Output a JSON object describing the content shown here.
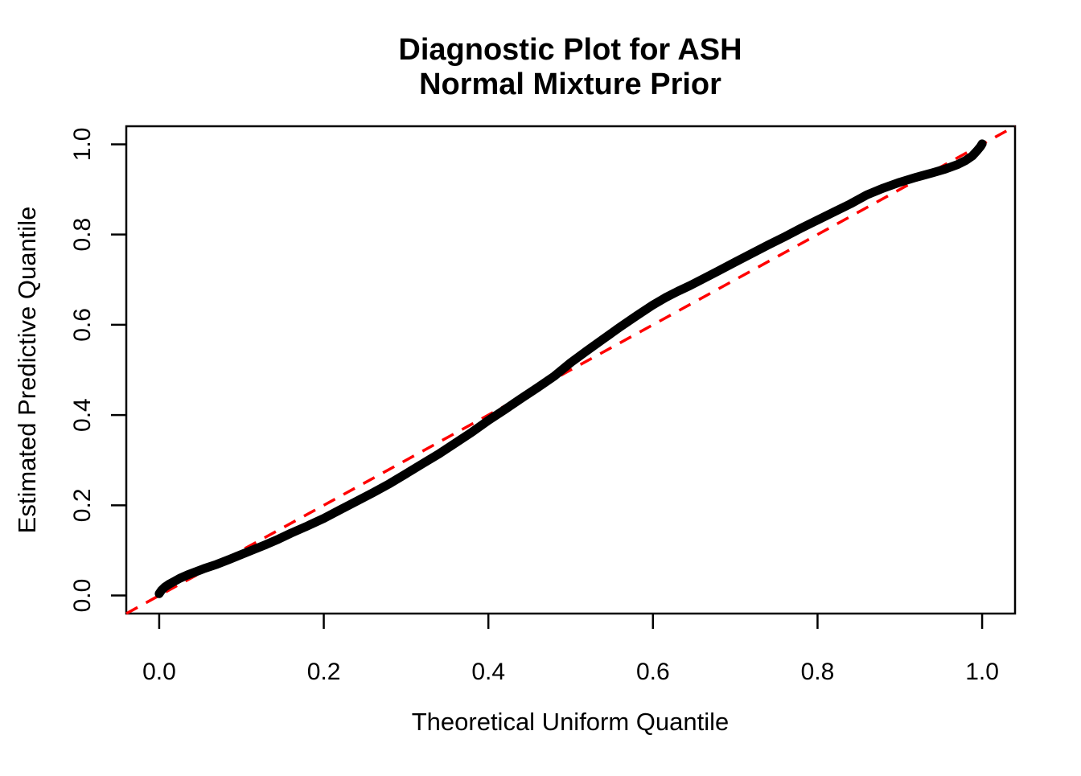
{
  "title_lines": [
    "Diagnostic Plot for ASH",
    "Normal Mixture Prior"
  ],
  "colors": {
    "curve": "#000000",
    "reference_line": "#ff0000",
    "axis": "#000000",
    "background": "#ffffff"
  },
  "chart_data": {
    "type": "scatter",
    "title": "Diagnostic Plot for ASH\nNormal Mixture Prior",
    "xlabel": "Theoretical Uniform Quantile",
    "ylabel": "Estimated Predictive Quantile",
    "xlim": [
      -0.04,
      1.04
    ],
    "ylim": [
      -0.04,
      1.04
    ],
    "grid": false,
    "legend": false,
    "x_ticks": [
      0.0,
      0.2,
      0.4,
      0.6,
      0.8,
      1.0
    ],
    "x_tick_labels": [
      "0.0",
      "0.2",
      "0.4",
      "0.6",
      "0.8",
      "1.0"
    ],
    "y_ticks": [
      0.0,
      0.2,
      0.4,
      0.6,
      0.8,
      1.0
    ],
    "y_tick_labels": [
      "0.0",
      "0.2",
      "0.4",
      "0.6",
      "0.8",
      "1.0"
    ],
    "series": [
      {
        "name": "estimated-predictive-quantiles",
        "style": "thick-point-curve",
        "color": "#000000",
        "points": [
          [
            0.0,
            0.004
          ],
          [
            0.003,
            0.012
          ],
          [
            0.007,
            0.019
          ],
          [
            0.012,
            0.025
          ],
          [
            0.018,
            0.031
          ],
          [
            0.025,
            0.038
          ],
          [
            0.035,
            0.046
          ],
          [
            0.045,
            0.053
          ],
          [
            0.055,
            0.06
          ],
          [
            0.07,
            0.069
          ],
          [
            0.085,
            0.08
          ],
          [
            0.1,
            0.091
          ],
          [
            0.115,
            0.102
          ],
          [
            0.13,
            0.113
          ],
          [
            0.145,
            0.125
          ],
          [
            0.16,
            0.138
          ],
          [
            0.18,
            0.154
          ],
          [
            0.2,
            0.171
          ],
          [
            0.22,
            0.19
          ],
          [
            0.24,
            0.209
          ],
          [
            0.26,
            0.228
          ],
          [
            0.28,
            0.248
          ],
          [
            0.3,
            0.27
          ],
          [
            0.32,
            0.292
          ],
          [
            0.34,
            0.314
          ],
          [
            0.36,
            0.338
          ],
          [
            0.38,
            0.362
          ],
          [
            0.4,
            0.388
          ],
          [
            0.42,
            0.412
          ],
          [
            0.44,
            0.437
          ],
          [
            0.46,
            0.461
          ],
          [
            0.48,
            0.486
          ],
          [
            0.5,
            0.516
          ],
          [
            0.52,
            0.543
          ],
          [
            0.54,
            0.569
          ],
          [
            0.56,
            0.595
          ],
          [
            0.58,
            0.62
          ],
          [
            0.6,
            0.644
          ],
          [
            0.615,
            0.66
          ],
          [
            0.63,
            0.674
          ],
          [
            0.645,
            0.687
          ],
          [
            0.66,
            0.701
          ],
          [
            0.68,
            0.72
          ],
          [
            0.7,
            0.739
          ],
          [
            0.72,
            0.758
          ],
          [
            0.74,
            0.777
          ],
          [
            0.76,
            0.795
          ],
          [
            0.78,
            0.814
          ],
          [
            0.8,
            0.832
          ],
          [
            0.82,
            0.85
          ],
          [
            0.84,
            0.868
          ],
          [
            0.86,
            0.888
          ],
          [
            0.88,
            0.903
          ],
          [
            0.9,
            0.916
          ],
          [
            0.92,
            0.927
          ],
          [
            0.94,
            0.937
          ],
          [
            0.955,
            0.945
          ],
          [
            0.97,
            0.955
          ],
          [
            0.98,
            0.964
          ],
          [
            0.988,
            0.974
          ],
          [
            0.994,
            0.986
          ],
          [
            0.998,
            0.995
          ],
          [
            1.0,
            1.001
          ]
        ]
      },
      {
        "name": "identity-reference-line",
        "style": "dashed-line",
        "color": "#ff0000",
        "from": [
          -0.04,
          -0.04
        ],
        "to": [
          1.04,
          1.04
        ]
      }
    ]
  }
}
